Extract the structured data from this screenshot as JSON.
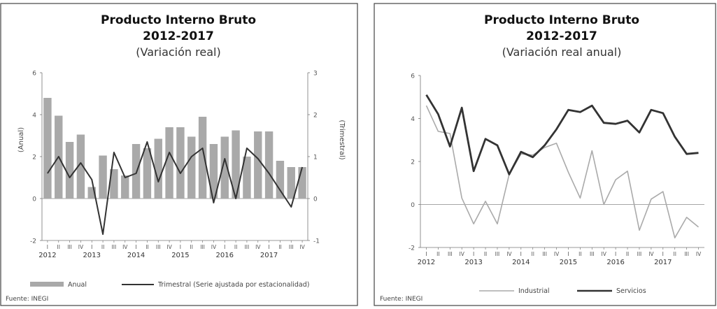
{
  "charts": [
    {
      "title": "Producto Interno Bruto",
      "subtitle": "2012-2017",
      "subtitle2": "(Variación real)",
      "source": "Fuente: INEGI",
      "quarter_labels": [
        "I",
        "II",
        "III",
        "IV",
        "I",
        "II",
        "III",
        "IV",
        "I",
        "II",
        "III",
        "IV",
        "I",
        "II",
        "III",
        "IV",
        "I",
        "II",
        "III",
        "IV",
        "I",
        "II",
        "III",
        "IV"
      ],
      "years": [
        "2012",
        "2013",
        "2014",
        "2015",
        "2016",
        "2017"
      ]
    },
    {
      "title": "Producto Interno Bruto",
      "subtitle": "2012-2017",
      "subtitle2": "(Variación real anual)",
      "source": "Fuente: INEGI",
      "quarter_labels": [
        "I",
        "II",
        "III",
        "IV",
        "I",
        "II",
        "III",
        "IV",
        "I",
        "II",
        "III",
        "IV",
        "I",
        "II",
        "III",
        "IV",
        "I",
        "II",
        "III",
        "IV",
        "I",
        "II",
        "III",
        "IV"
      ],
      "years": [
        "2012",
        "2013",
        "2014",
        "2015",
        "2016",
        "2017"
      ]
    }
  ],
  "chart_data": [
    {
      "type": "bar",
      "title": "Producto Interno Bruto 2012-2017 (Variación real)",
      "categories": [
        "2012-I",
        "2012-II",
        "2012-III",
        "2012-IV",
        "2013-I",
        "2013-II",
        "2013-III",
        "2013-IV",
        "2014-I",
        "2014-II",
        "2014-III",
        "2014-IV",
        "2015-I",
        "2015-II",
        "2015-III",
        "2015-IV",
        "2016-I",
        "2016-II",
        "2016-III",
        "2016-IV",
        "2017-I",
        "2017-II",
        "2017-III",
        "2017-IV"
      ],
      "ylabel": "(Anual)",
      "y2label": "(Trimestral)",
      "ylim": [
        -2,
        6
      ],
      "y2lim": [
        -1,
        3
      ],
      "yticks": [
        -2,
        0,
        2,
        4,
        6
      ],
      "y2ticks": [
        -1,
        0,
        1,
        2,
        3
      ],
      "legend_placement": "bottom",
      "grid": false,
      "series": [
        {
          "name": "Anual",
          "type": "bar",
          "axis": "left",
          "color": "#a9a9a9",
          "values": [
            4.8,
            3.95,
            2.7,
            3.05,
            0.55,
            2.05,
            1.4,
            1.1,
            2.6,
            2.4,
            2.85,
            3.4,
            3.4,
            2.95,
            3.9,
            2.6,
            2.95,
            3.25,
            2.0,
            3.2,
            3.2,
            1.8,
            1.5,
            1.5
          ]
        },
        {
          "name": "Trimestral (Serie ajustada por estacionalidad)",
          "type": "line",
          "axis": "right",
          "color": "#333333",
          "values": [
            0.6,
            1.0,
            0.5,
            0.85,
            0.45,
            -0.85,
            1.1,
            0.5,
            0.6,
            1.35,
            0.4,
            1.1,
            0.6,
            1.0,
            1.2,
            -0.1,
            0.95,
            0.0,
            1.2,
            0.95,
            0.6,
            0.2,
            -0.2,
            0.75
          ]
        }
      ]
    },
    {
      "type": "line",
      "title": "Producto Interno Bruto 2012-2017 (Variación real anual)",
      "categories": [
        "2012-I",
        "2012-II",
        "2012-III",
        "2012-IV",
        "2013-I",
        "2013-II",
        "2013-III",
        "2013-IV",
        "2014-I",
        "2014-II",
        "2014-III",
        "2014-IV",
        "2015-I",
        "2015-II",
        "2015-III",
        "2015-IV",
        "2016-I",
        "2016-II",
        "2016-III",
        "2016-IV",
        "2017-I",
        "2017-II",
        "2017-III",
        "2017-IV"
      ],
      "ylim": [
        -2,
        6
      ],
      "yticks": [
        -2,
        0,
        2,
        4,
        6
      ],
      "legend_placement": "bottom",
      "grid": false,
      "series": [
        {
          "name": "Industrial",
          "color": "#aaaaaa",
          "values": [
            4.6,
            3.4,
            3.3,
            0.3,
            -0.9,
            0.15,
            -0.9,
            1.4,
            2.35,
            2.3,
            2.65,
            2.85,
            1.5,
            0.3,
            2.5,
            0.0,
            1.15,
            1.55,
            -1.2,
            0.25,
            0.6,
            -1.55,
            -0.6,
            -1.05
          ]
        },
        {
          "name": "Servicios",
          "color": "#333333",
          "values": [
            5.1,
            4.2,
            2.7,
            4.5,
            1.55,
            3.05,
            2.75,
            1.4,
            2.45,
            2.2,
            2.75,
            3.5,
            4.4,
            4.3,
            4.6,
            3.8,
            3.75,
            3.9,
            3.35,
            4.4,
            4.25,
            3.15,
            2.35,
            2.4
          ]
        }
      ]
    }
  ]
}
